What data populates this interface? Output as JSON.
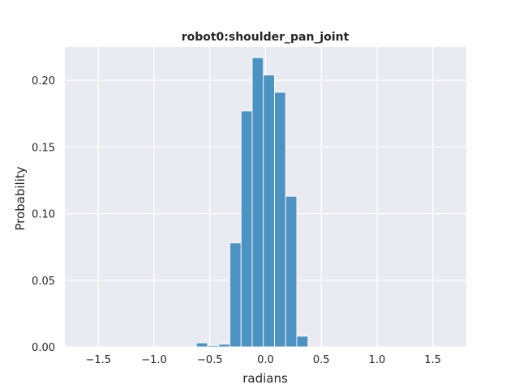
{
  "chart_data": {
    "type": "bar",
    "title": "robot0:shoulder_pan_joint",
    "xlabel": "radians",
    "ylabel": "Probability",
    "xlim": [
      -1.8,
      1.8
    ],
    "ylim": [
      0,
      0.225
    ],
    "xticks": [
      "−1.5",
      "−1.0",
      "−0.5",
      "0.0",
      "0.5",
      "1.0",
      "1.5"
    ],
    "xtick_values": [
      -1.5,
      -1.0,
      -0.5,
      0.0,
      0.5,
      1.0,
      1.5
    ],
    "yticks": [
      "0.00",
      "0.05",
      "0.10",
      "0.15",
      "0.20"
    ],
    "ytick_values": [
      0.0,
      0.05,
      0.1,
      0.15,
      0.2
    ],
    "grid": true,
    "style": "darkgrid",
    "bar_color": "#4c92c3",
    "background_color": "#eaeaf2",
    "bins": [
      {
        "x0": -0.62,
        "x1": -0.52,
        "value": 0.003
      },
      {
        "x0": -0.52,
        "x1": -0.42,
        "value": 0.001
      },
      {
        "x0": -0.42,
        "x1": -0.32,
        "value": 0.002
      },
      {
        "x0": -0.32,
        "x1": -0.22,
        "value": 0.078
      },
      {
        "x0": -0.22,
        "x1": -0.12,
        "value": 0.177
      },
      {
        "x0": -0.12,
        "x1": -0.02,
        "value": 0.217
      },
      {
        "x0": -0.02,
        "x1": 0.08,
        "value": 0.204
      },
      {
        "x0": 0.08,
        "x1": 0.18,
        "value": 0.191
      },
      {
        "x0": 0.18,
        "x1": 0.28,
        "value": 0.113
      },
      {
        "x0": 0.28,
        "x1": 0.38,
        "value": 0.008
      }
    ]
  }
}
